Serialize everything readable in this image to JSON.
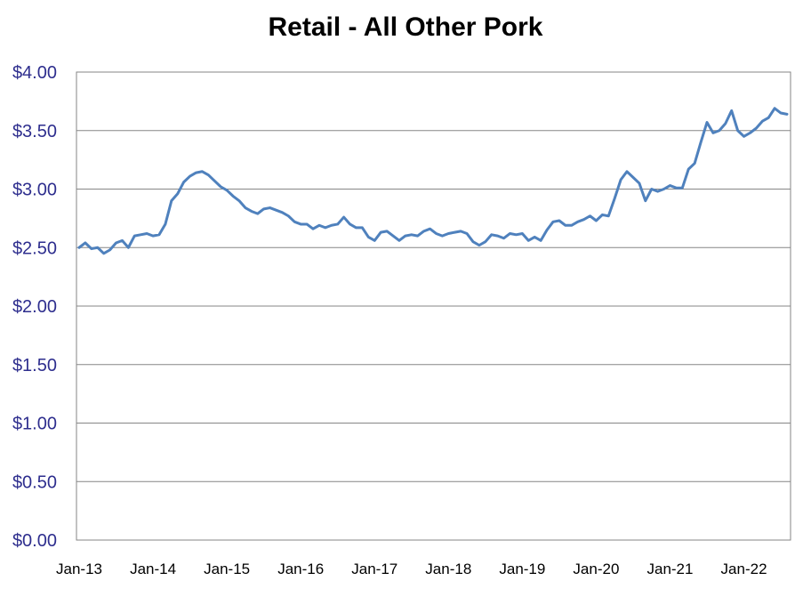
{
  "chart_data": {
    "type": "line",
    "title": "Retail - All Other Pork",
    "xlabel": "",
    "ylabel": "",
    "ylim": [
      0,
      4
    ],
    "y_tick_labels": [
      "$0.00",
      "$0.50",
      "$1.00",
      "$1.50",
      "$2.00",
      "$2.50",
      "$3.00",
      "$3.50",
      "$4.00"
    ],
    "x_tick_labels": [
      "Jan-13",
      "Jan-14",
      "Jan-15",
      "Jan-16",
      "Jan-17",
      "Jan-18",
      "Jan-19",
      "Jan-20",
      "Jan-21",
      "Jan-22"
    ],
    "grid": true,
    "legend": "none",
    "x_start": "Jan-13",
    "x_interval": "monthly",
    "series": [
      {
        "color": "#4f81bd",
        "values": [
          2.5,
          2.54,
          2.49,
          2.5,
          2.45,
          2.48,
          2.54,
          2.56,
          2.5,
          2.6,
          2.61,
          2.62,
          2.6,
          2.61,
          2.7,
          2.9,
          2.96,
          3.06,
          3.11,
          3.14,
          3.15,
          3.12,
          3.07,
          3.02,
          2.99,
          2.94,
          2.9,
          2.84,
          2.81,
          2.79,
          2.83,
          2.84,
          2.82,
          2.8,
          2.77,
          2.72,
          2.7,
          2.7,
          2.66,
          2.69,
          2.67,
          2.69,
          2.7,
          2.76,
          2.7,
          2.67,
          2.67,
          2.59,
          2.56,
          2.63,
          2.64,
          2.6,
          2.56,
          2.6,
          2.61,
          2.6,
          2.64,
          2.66,
          2.62,
          2.6,
          2.62,
          2.63,
          2.64,
          2.62,
          2.55,
          2.52,
          2.55,
          2.61,
          2.6,
          2.58,
          2.62,
          2.61,
          2.62,
          2.56,
          2.59,
          2.56,
          2.65,
          2.72,
          2.73,
          2.69,
          2.69,
          2.72,
          2.74,
          2.77,
          2.73,
          2.78,
          2.77,
          2.92,
          3.08,
          3.15,
          3.1,
          3.05,
          2.9,
          3.0,
          2.98,
          3.0,
          3.03,
          3.01,
          3.01,
          3.17,
          3.22,
          3.4,
          3.57,
          3.48,
          3.5,
          3.56,
          3.67,
          3.5,
          3.45,
          3.48,
          3.52,
          3.58,
          3.61,
          3.69,
          3.65,
          3.64
        ]
      }
    ]
  }
}
